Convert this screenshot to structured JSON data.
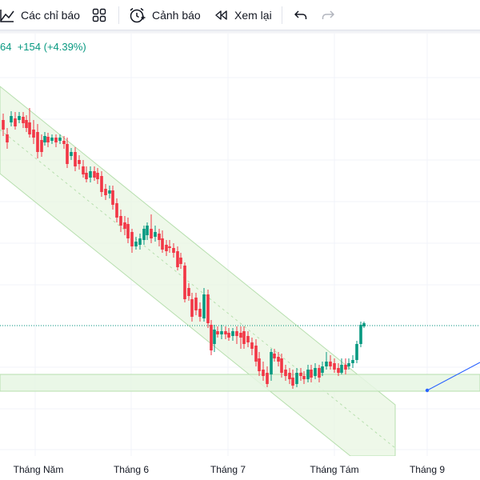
{
  "toolbar": {
    "indicators_label": "Các chỉ báo",
    "alerts_label": "Cảnh báo",
    "replay_label": "Xem lại"
  },
  "quote": {
    "price_fragment": "64",
    "change": "+154",
    "change_pct": "(+4.39%)"
  },
  "colors": {
    "up": "#089981",
    "down": "#f23645",
    "channel_fill": "#e8f5e2",
    "channel_line": "#b7dfae",
    "zone_fill": "#e6f6e3",
    "price_line": "#089981",
    "forecast_line": "#2962ff"
  },
  "time_axis": {
    "labels": [
      "Tháng Năm",
      "Tháng 6",
      "Tháng 7",
      "Tháng Tám",
      "Tháng 9"
    ]
  }
}
